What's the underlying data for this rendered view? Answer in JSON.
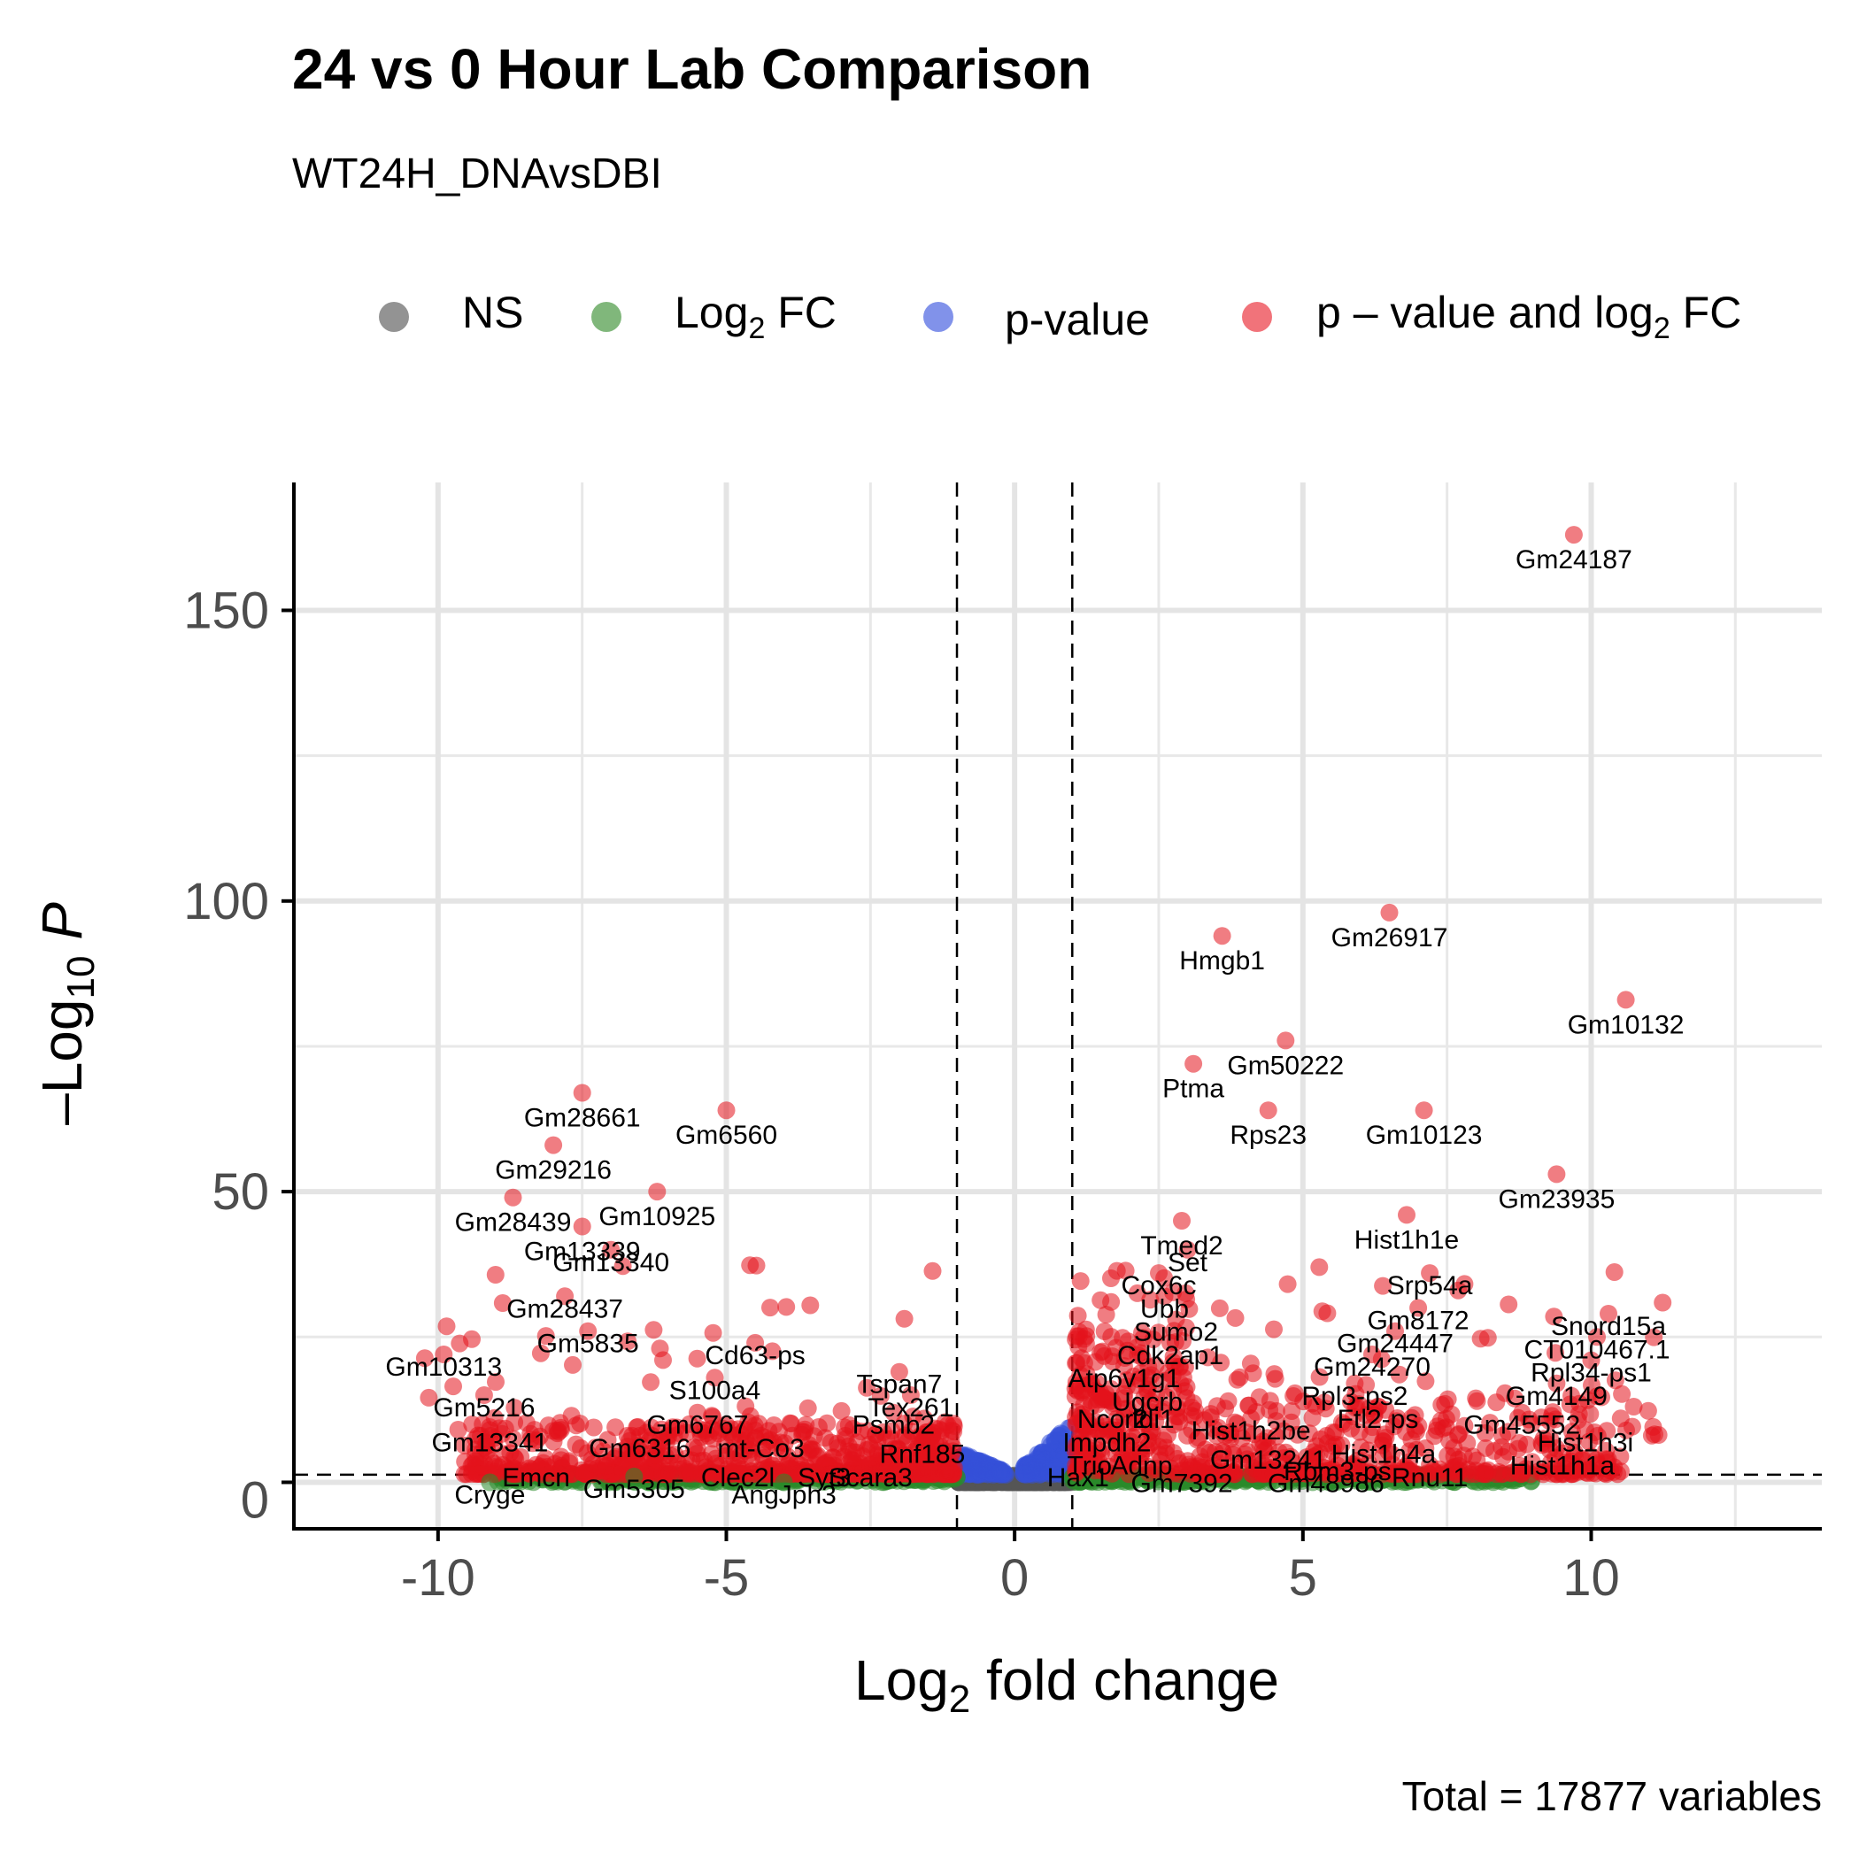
{
  "title": "24 vs 0 Hour Lab Comparison",
  "subtitle": "WT24H_DNAvsDBI",
  "caption": "Total = 17877 variables",
  "legend": [
    {
      "key": "NS",
      "label": "NS",
      "color": "#808080"
    },
    {
      "key": "FC",
      "label": "Log",
      "sub": "2",
      "suffix": " FC",
      "color": "#6aaa64"
    },
    {
      "key": "P",
      "label": "p-value",
      "color": "#6b7fe6"
    },
    {
      "key": "FC_P",
      "label": "p – value and log",
      "sub": "2",
      "suffix": " FC",
      "color": "#ee5a63"
    }
  ],
  "chart_data": {
    "type": "scatter",
    "title": "24 vs 0 Hour Lab Comparison",
    "subtitle": "WT24H_DNAvsDBI",
    "xlabel": "Log2 fold change",
    "ylabel": "-Log10 P",
    "xlim": [
      -12.5,
      14
    ],
    "ylim": [
      -8,
      172
    ],
    "x_ticks": [
      -10,
      -5,
      0,
      5,
      10
    ],
    "x_tick_labels": [
      "-10",
      "-5",
      "0",
      "5",
      "10"
    ],
    "y_ticks": [
      0,
      50,
      100,
      150
    ],
    "y_tick_labels": [
      "0",
      "50",
      "100",
      "150"
    ],
    "fc_cutoff": 1,
    "p_cutoff_log10": 1.3,
    "grid": true,
    "legend_position": "top",
    "labeled_points": [
      {
        "gene": "Gm24187",
        "x": 9.7,
        "y": 163
      },
      {
        "gene": "Gm26917",
        "x": 6.5,
        "y": 98
      },
      {
        "gene": "Hmgb1",
        "x": 3.6,
        "y": 94
      },
      {
        "gene": "Gm10132",
        "x": 10.6,
        "y": 83
      },
      {
        "gene": "Gm50222",
        "x": 4.7,
        "y": 76
      },
      {
        "gene": "Ptma",
        "x": 3.1,
        "y": 72
      },
      {
        "gene": "Rps23",
        "x": 4.4,
        "y": 64
      },
      {
        "gene": "Gm10123",
        "x": 7.1,
        "y": 64
      },
      {
        "gene": "Gm23935",
        "x": 9.4,
        "y": 53
      },
      {
        "gene": "Tmed2",
        "x": 2.9,
        "y": 45
      },
      {
        "gene": "Set",
        "x": 3.0,
        "y": 40
      },
      {
        "gene": "Hist1h1e",
        "x": 6.8,
        "y": 46
      },
      {
        "gene": "Cox6c",
        "x": 2.5,
        "y": 36
      },
      {
        "gene": "Srp54a",
        "x": 7.2,
        "y": 36
      },
      {
        "gene": "Ubb",
        "x": 2.6,
        "y": 32
      },
      {
        "gene": "Gm8172",
        "x": 7.0,
        "y": 30
      },
      {
        "gene": "Sumo2",
        "x": 2.8,
        "y": 28
      },
      {
        "gene": "Snord15a",
        "x": 10.3,
        "y": 29
      },
      {
        "gene": "Gm24447",
        "x": 6.6,
        "y": 26
      },
      {
        "gene": "CT010467.1",
        "x": 10.1,
        "y": 25
      },
      {
        "gene": "Cdk2ap1",
        "x": 2.7,
        "y": 24
      },
      {
        "gene": "Gm24270",
        "x": 6.2,
        "y": 22
      },
      {
        "gene": "Rpl34-ps1",
        "x": 10.0,
        "y": 21
      },
      {
        "gene": "Atp6v1g1",
        "x": 1.9,
        "y": 20
      },
      {
        "gene": "Rpl3-ps2",
        "x": 5.9,
        "y": 17
      },
      {
        "gene": "Gm4149",
        "x": 9.4,
        "y": 17
      },
      {
        "gene": "Ugcrb",
        "x": 2.3,
        "y": 16
      },
      {
        "gene": "Ftl2-ps",
        "x": 6.3,
        "y": 13
      },
      {
        "gene": "Gm45552",
        "x": 8.8,
        "y": 12
      },
      {
        "gene": "Hist1h2be",
        "x": 4.1,
        "y": 11
      },
      {
        "gene": "Ncor2",
        "x": 1.7,
        "y": 13
      },
      {
        "gene": "Idi1",
        "x": 2.4,
        "y": 13
      },
      {
        "gene": "Hist1h3i",
        "x": 9.9,
        "y": 9
      },
      {
        "gene": "Impdh2",
        "x": 1.6,
        "y": 9
      },
      {
        "gene": "Hist1h4a",
        "x": 6.4,
        "y": 7
      },
      {
        "gene": "Gm13241",
        "x": 4.4,
        "y": 6
      },
      {
        "gene": "Trio",
        "x": 1.3,
        "y": 5
      },
      {
        "gene": "Adnp",
        "x": 2.2,
        "y": 5
      },
      {
        "gene": "Hist1h1a",
        "x": 9.5,
        "y": 5
      },
      {
        "gene": "Rbm3-ps",
        "x": 5.6,
        "y": 4
      },
      {
        "gene": "Rnu11",
        "x": 7.2,
        "y": 3
      },
      {
        "gene": "Hax1",
        "x": 1.1,
        "y": 3
      },
      {
        "gene": "Gm7392",
        "x": 2.9,
        "y": 2
      },
      {
        "gene": "Gm48986",
        "x": 5.4,
        "y": 2
      },
      {
        "gene": "Gm28661",
        "x": -7.5,
        "y": 67
      },
      {
        "gene": "Gm6560",
        "x": -5.0,
        "y": 64
      },
      {
        "gene": "Gm29216",
        "x": -8.0,
        "y": 58
      },
      {
        "gene": "Gm28439",
        "x": -8.7,
        "y": 49
      },
      {
        "gene": "Gm10925",
        "x": -6.2,
        "y": 50
      },
      {
        "gene": "Gm13339",
        "x": -7.5,
        "y": 44
      },
      {
        "gene": "Gm13340",
        "x": -7.0,
        "y": 40
      },
      {
        "gene": "Gm28437",
        "x": -7.8,
        "y": 32
      },
      {
        "gene": "Gm5835",
        "x": -7.4,
        "y": 26
      },
      {
        "gene": "Cd63-ps",
        "x": -4.5,
        "y": 24
      },
      {
        "gene": "Gm10313",
        "x": -9.9,
        "y": 22
      },
      {
        "gene": "S100a4",
        "x": -5.2,
        "y": 18
      },
      {
        "gene": "Tspan7",
        "x": -2.0,
        "y": 19
      },
      {
        "gene": "Gm5216",
        "x": -9.2,
        "y": 15
      },
      {
        "gene": "Tex261",
        "x": -1.8,
        "y": 15
      },
      {
        "gene": "Gm6767",
        "x": -5.5,
        "y": 12
      },
      {
        "gene": "Psmb2",
        "x": -2.1,
        "y": 12
      },
      {
        "gene": "Gm13341",
        "x": -9.1,
        "y": 9
      },
      {
        "gene": "Gm6316",
        "x": -6.5,
        "y": 8
      },
      {
        "gene": "mt-Co3",
        "x": -4.4,
        "y": 8
      },
      {
        "gene": "Rnf185",
        "x": -1.6,
        "y": 7
      },
      {
        "gene": "Emcn",
        "x": -8.3,
        "y": 3
      },
      {
        "gene": "Clec2l",
        "x": -4.8,
        "y": 3
      },
      {
        "gene": "Syt3",
        "x": -3.3,
        "y": 3
      },
      {
        "gene": "Scara3",
        "x": -2.5,
        "y": 3
      },
      {
        "gene": "Gm5305",
        "x": -6.6,
        "y": 1
      },
      {
        "gene": "AngJph3",
        "x": -4.0,
        "y": 0
      },
      {
        "gene": "Cryge",
        "x": -9.1,
        "y": 0
      }
    ]
  }
}
